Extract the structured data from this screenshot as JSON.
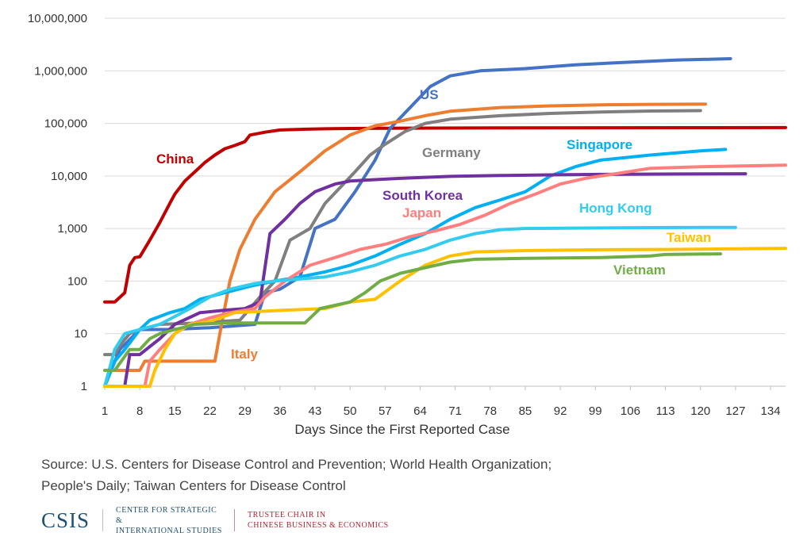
{
  "chart_data": {
    "type": "line",
    "xlabel": "Days Since the First Reported Case",
    "ylabel": "",
    "y_scale": "log",
    "ylim": [
      1,
      10000000
    ],
    "xlim": [
      1,
      137
    ],
    "x_ticks": [
      1,
      8,
      15,
      22,
      29,
      36,
      43,
      50,
      57,
      64,
      71,
      78,
      85,
      92,
      99,
      106,
      113,
      120,
      127,
      134
    ],
    "y_tick_labels": [
      "1",
      "10",
      "100",
      "1,000",
      "10,000",
      "100,000",
      "1,000,000",
      "10,000,000"
    ],
    "grid": "horizontal",
    "series": [
      {
        "name": "China",
        "color": "#c00000",
        "points": [
          [
            1,
            40
          ],
          [
            3,
            40
          ],
          [
            5,
            60
          ],
          [
            6,
            200
          ],
          [
            7,
            280
          ],
          [
            8,
            290
          ],
          [
            10,
            600
          ],
          [
            12,
            1300
          ],
          [
            14,
            3000
          ],
          [
            15,
            4500
          ],
          [
            17,
            8000
          ],
          [
            19,
            12000
          ],
          [
            21,
            18000
          ],
          [
            23,
            25000
          ],
          [
            25,
            33000
          ],
          [
            27,
            38000
          ],
          [
            29,
            45000
          ],
          [
            30,
            60000
          ],
          [
            33,
            68000
          ],
          [
            36,
            75000
          ],
          [
            40,
            77000
          ],
          [
            45,
            79000
          ],
          [
            50,
            80000
          ],
          [
            60,
            81000
          ],
          [
            80,
            82000
          ],
          [
            100,
            82500
          ],
          [
            137,
            83000
          ]
        ]
      },
      {
        "name": "US",
        "color": "#4472c4",
        "points": [
          [
            1,
            1
          ],
          [
            4,
            5
          ],
          [
            8,
            12
          ],
          [
            14,
            12
          ],
          [
            22,
            13
          ],
          [
            31,
            15
          ],
          [
            33,
            60
          ],
          [
            36,
            70
          ],
          [
            40,
            120
          ],
          [
            43,
            1000
          ],
          [
            47,
            1500
          ],
          [
            51,
            5000
          ],
          [
            55,
            20000
          ],
          [
            58,
            80000
          ],
          [
            62,
            200000
          ],
          [
            66,
            500000
          ],
          [
            70,
            800000
          ],
          [
            76,
            1000000
          ],
          [
            85,
            1100000
          ],
          [
            95,
            1300000
          ],
          [
            105,
            1450000
          ],
          [
            115,
            1600000
          ],
          [
            126,
            1700000
          ]
        ]
      },
      {
        "name": "Italy",
        "color": "#ed7d31",
        "points": [
          [
            1,
            2
          ],
          [
            8,
            2
          ],
          [
            9,
            3
          ],
          [
            20,
            3
          ],
          [
            23,
            3
          ],
          [
            24,
            10
          ],
          [
            26,
            100
          ],
          [
            28,
            400
          ],
          [
            31,
            1500
          ],
          [
            35,
            5000
          ],
          [
            40,
            12000
          ],
          [
            45,
            30000
          ],
          [
            50,
            60000
          ],
          [
            55,
            90000
          ],
          [
            60,
            110000
          ],
          [
            65,
            140000
          ],
          [
            70,
            170000
          ],
          [
            80,
            200000
          ],
          [
            90,
            215000
          ],
          [
            100,
            225000
          ],
          [
            110,
            230000
          ],
          [
            121,
            232000
          ]
        ]
      },
      {
        "name": "Germany",
        "color": "#7f7f7f",
        "points": [
          [
            1,
            4
          ],
          [
            3,
            4
          ],
          [
            4,
            6
          ],
          [
            6,
            10
          ],
          [
            8,
            12
          ],
          [
            12,
            15
          ],
          [
            20,
            16
          ],
          [
            28,
            18
          ],
          [
            32,
            50
          ],
          [
            35,
            100
          ],
          [
            38,
            600
          ],
          [
            42,
            1000
          ],
          [
            45,
            3000
          ],
          [
            48,
            6000
          ],
          [
            51,
            12000
          ],
          [
            54,
            25000
          ],
          [
            57,
            40000
          ],
          [
            61,
            70000
          ],
          [
            65,
            100000
          ],
          [
            70,
            120000
          ],
          [
            80,
            140000
          ],
          [
            90,
            155000
          ],
          [
            100,
            165000
          ],
          [
            110,
            172000
          ],
          [
            120,
            175000
          ]
        ]
      },
      {
        "name": "Singapore",
        "color": "#00b0f0",
        "points": [
          [
            1,
            1
          ],
          [
            3,
            3
          ],
          [
            5,
            5
          ],
          [
            8,
            12
          ],
          [
            10,
            18
          ],
          [
            14,
            25
          ],
          [
            17,
            30
          ],
          [
            20,
            45
          ],
          [
            25,
            60
          ],
          [
            30,
            80
          ],
          [
            35,
            100
          ],
          [
            40,
            120
          ],
          [
            45,
            150
          ],
          [
            50,
            200
          ],
          [
            55,
            300
          ],
          [
            60,
            500
          ],
          [
            65,
            800
          ],
          [
            70,
            1500
          ],
          [
            75,
            2500
          ],
          [
            80,
            3500
          ],
          [
            85,
            5000
          ],
          [
            90,
            10000
          ],
          [
            95,
            15000
          ],
          [
            100,
            20000
          ],
          [
            110,
            25000
          ],
          [
            120,
            30000
          ],
          [
            125,
            32000
          ]
        ]
      },
      {
        "name": "South Korea",
        "color": "#7030a0",
        "points": [
          [
            1,
            1
          ],
          [
            5,
            1
          ],
          [
            6,
            4
          ],
          [
            8,
            4
          ],
          [
            12,
            8
          ],
          [
            15,
            15
          ],
          [
            20,
            25
          ],
          [
            25,
            28
          ],
          [
            29,
            30
          ],
          [
            32,
            40
          ],
          [
            34,
            800
          ],
          [
            37,
            1500
          ],
          [
            40,
            3000
          ],
          [
            43,
            5000
          ],
          [
            47,
            7000
          ],
          [
            50,
            8000
          ],
          [
            55,
            8500
          ],
          [
            60,
            9000
          ],
          [
            70,
            9800
          ],
          [
            80,
            10200
          ],
          [
            90,
            10500
          ],
          [
            100,
            10700
          ],
          [
            115,
            10900
          ],
          [
            129,
            11000
          ]
        ]
      },
      {
        "name": "Japan",
        "color": "#ff7f7f",
        "points": [
          [
            1,
            1
          ],
          [
            9,
            1
          ],
          [
            10,
            3
          ],
          [
            12,
            5
          ],
          [
            15,
            10
          ],
          [
            18,
            15
          ],
          [
            22,
            20
          ],
          [
            26,
            25
          ],
          [
            31,
            30
          ],
          [
            33,
            50
          ],
          [
            37,
            100
          ],
          [
            42,
            200
          ],
          [
            48,
            300
          ],
          [
            52,
            400
          ],
          [
            57,
            500
          ],
          [
            62,
            700
          ],
          [
            67,
            900
          ],
          [
            72,
            1200
          ],
          [
            77,
            1800
          ],
          [
            82,
            3000
          ],
          [
            87,
            4500
          ],
          [
            92,
            7000
          ],
          [
            97,
            9000
          ],
          [
            103,
            11000
          ],
          [
            110,
            14000
          ],
          [
            120,
            15000
          ],
          [
            137,
            16000
          ]
        ]
      },
      {
        "name": "Hong Kong",
        "color": "#33ccee",
        "points": [
          [
            1,
            1
          ],
          [
            3,
            5
          ],
          [
            5,
            10
          ],
          [
            8,
            12
          ],
          [
            12,
            15
          ],
          [
            18,
            30
          ],
          [
            22,
            50
          ],
          [
            26,
            70
          ],
          [
            31,
            90
          ],
          [
            35,
            100
          ],
          [
            40,
            110
          ],
          [
            45,
            120
          ],
          [
            50,
            150
          ],
          [
            55,
            200
          ],
          [
            60,
            300
          ],
          [
            65,
            400
          ],
          [
            70,
            600
          ],
          [
            75,
            800
          ],
          [
            80,
            950
          ],
          [
            85,
            1000
          ],
          [
            95,
            1020
          ],
          [
            110,
            1040
          ],
          [
            127,
            1050
          ]
        ]
      },
      {
        "name": "Taiwan",
        "color": "#ffc000",
        "points": [
          [
            1,
            1
          ],
          [
            10,
            1
          ],
          [
            11,
            2
          ],
          [
            13,
            5
          ],
          [
            15,
            10
          ],
          [
            18,
            15
          ],
          [
            22,
            17
          ],
          [
            27,
            25
          ],
          [
            37,
            28
          ],
          [
            45,
            30
          ],
          [
            50,
            40
          ],
          [
            55,
            45
          ],
          [
            60,
            100
          ],
          [
            65,
            200
          ],
          [
            70,
            300
          ],
          [
            75,
            360
          ],
          [
            85,
            380
          ],
          [
            100,
            395
          ],
          [
            115,
            400
          ],
          [
            137,
            420
          ]
        ]
      },
      {
        "name": "Vietnam",
        "color": "#70ad47",
        "points": [
          [
            1,
            2
          ],
          [
            3,
            2
          ],
          [
            6,
            5
          ],
          [
            8,
            5
          ],
          [
            10,
            8
          ],
          [
            12,
            10
          ],
          [
            15,
            12
          ],
          [
            19,
            15
          ],
          [
            25,
            16
          ],
          [
            33,
            16
          ],
          [
            41,
            16
          ],
          [
            44,
            30
          ],
          [
            50,
            40
          ],
          [
            53,
            60
          ],
          [
            56,
            100
          ],
          [
            60,
            140
          ],
          [
            65,
            180
          ],
          [
            70,
            230
          ],
          [
            75,
            260
          ],
          [
            85,
            270
          ],
          [
            100,
            280
          ],
          [
            110,
            300
          ],
          [
            113,
            320
          ],
          [
            124,
            330
          ]
        ]
      }
    ]
  },
  "label_text": {
    "China": "China",
    "US": "US",
    "Italy": "Italy",
    "Germany": "Germany",
    "Singapore": "Singapore",
    "South Korea": "South Korea",
    "Japan": "Japan",
    "Hong Kong": "Hong Kong",
    "Taiwan": "Taiwan",
    "Vietnam": "Vietnam"
  },
  "source": {
    "line1": "Source: U.S. Centers for Disease Control and Prevention; World Health Organization;",
    "line2": "People's Daily; Taiwan Centers for Disease Control"
  },
  "footer": {
    "logo": "CSIS",
    "center_line1": "CENTER FOR STRATEGIC &",
    "center_line2": "INTERNATIONAL STUDIES",
    "trustee_line1": "TRUSTEE CHAIR IN",
    "trustee_line2": "CHINESE BUSINESS & ECONOMICS"
  }
}
